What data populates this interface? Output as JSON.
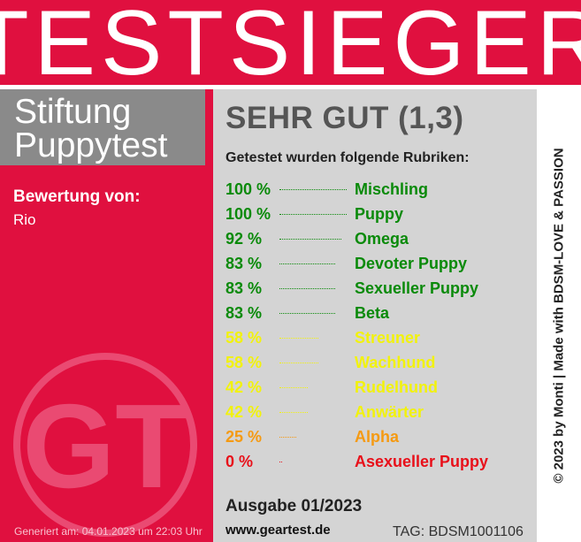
{
  "banner": {
    "title": "TESTSIEGER"
  },
  "brand": {
    "line1": "Stiftung",
    "line2": "Puppytest"
  },
  "rating": {
    "label": "Bewertung von:",
    "value": "Rio"
  },
  "logo": {
    "text": "GT"
  },
  "generated": "Generiert am: 04.01.2023 um 22:03 Uhr",
  "panel": {
    "grade": "SEHR GUT (1,3)",
    "intro": "Getestet wurden folgende Rubriken:",
    "categories": [
      {
        "percent": "100 %",
        "name": "Mischling",
        "value": 100,
        "color": "#0a8a0a"
      },
      {
        "percent": "100 %",
        "name": "Puppy",
        "value": 100,
        "color": "#0a8a0a"
      },
      {
        "percent": "92 %",
        "name": "Omega",
        "value": 92,
        "color": "#0a8a0a"
      },
      {
        "percent": "83 %",
        "name": "Devoter Puppy",
        "value": 83,
        "color": "#0a8a0a"
      },
      {
        "percent": "83 %",
        "name": "Sexueller Puppy",
        "value": 83,
        "color": "#0a8a0a"
      },
      {
        "percent": "83 %",
        "name": "Beta",
        "value": 83,
        "color": "#0a8a0a"
      },
      {
        "percent": "58 %",
        "name": "Streuner",
        "value": 58,
        "color": "#f2f20c"
      },
      {
        "percent": "58 %",
        "name": "Wachhund",
        "value": 58,
        "color": "#f2f20c"
      },
      {
        "percent": "42 %",
        "name": "Rudelhund",
        "value": 42,
        "color": "#f2f20c"
      },
      {
        "percent": "42 %",
        "name": "Anwärter",
        "value": 42,
        "color": "#f2f20c"
      },
      {
        "percent": "25 %",
        "name": "Alpha",
        "value": 25,
        "color": "#f59a12"
      },
      {
        "percent": "0 %",
        "name": "Asexueller Puppy",
        "value": 0,
        "color": "#e8101a"
      }
    ],
    "edition": "Ausgabe 01/2023",
    "website": "www.geartest.de",
    "tag": "TAG: BDSM1001106"
  },
  "side": {
    "credit": "© 2023 by Monti | Made with BDSM-LOVE & PASSION"
  },
  "colors": {
    "accent": "#e0103f",
    "brand_gray": "#8a8a8a",
    "panel": "#d4d4d4"
  }
}
